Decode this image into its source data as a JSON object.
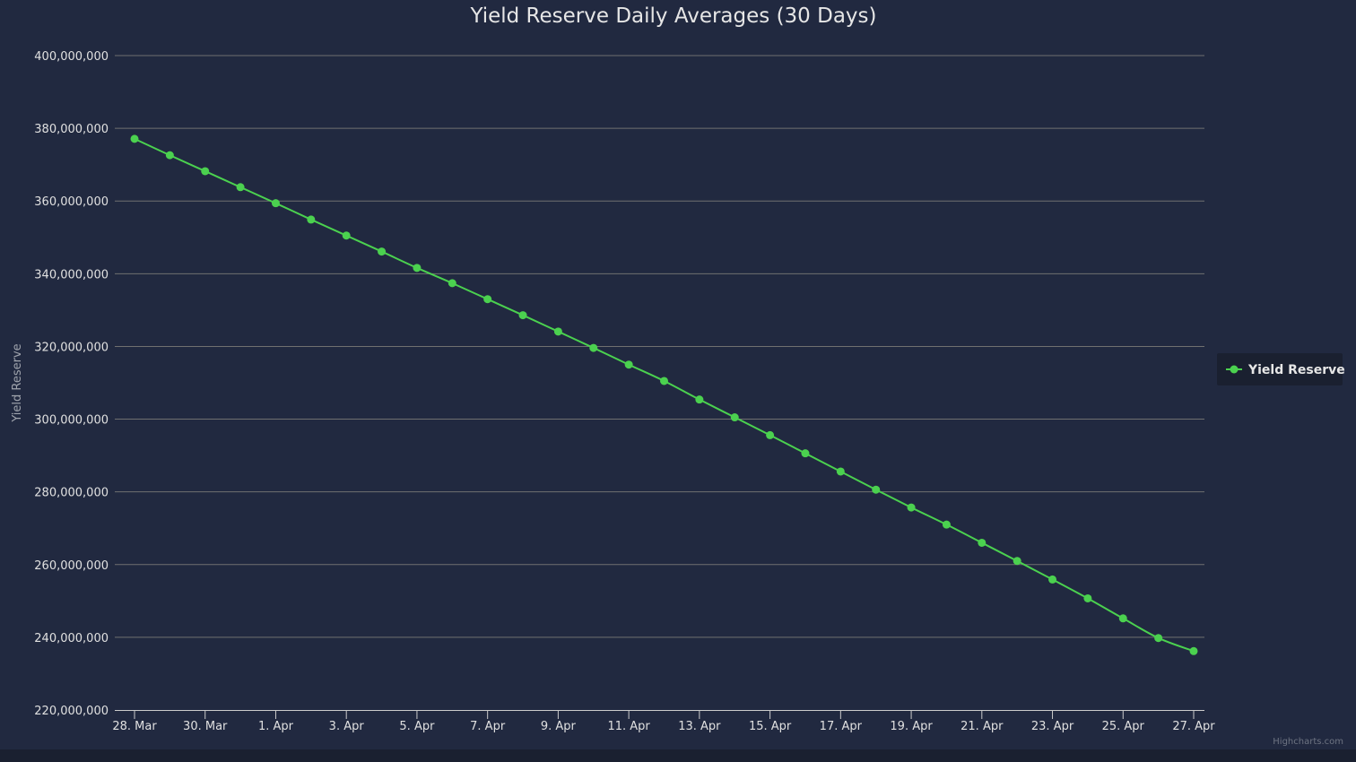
{
  "chart_data": {
    "type": "line",
    "title": "Yield Reserve Daily Averages (30 Days)",
    "xlabel": "",
    "ylabel": "Yield Reserve",
    "ylim": [
      220000000,
      400000000
    ],
    "y_ticks": [
      220000000,
      240000000,
      260000000,
      280000000,
      300000000,
      320000000,
      340000000,
      360000000,
      380000000,
      400000000
    ],
    "y_tick_labels": [
      "220,000,000",
      "240,000,000",
      "260,000,000",
      "280,000,000",
      "300,000,000",
      "320,000,000",
      "340,000,000",
      "360,000,000",
      "380,000,000",
      "400,000,000"
    ],
    "x": [
      "28. Mar",
      "29. Mar",
      "30. Mar",
      "31. Mar",
      "1. Apr",
      "2. Apr",
      "3. Apr",
      "4. Apr",
      "5. Apr",
      "6. Apr",
      "7. Apr",
      "8. Apr",
      "9. Apr",
      "10. Apr",
      "11. Apr",
      "12. Apr",
      "13. Apr",
      "14. Apr",
      "15. Apr",
      "16. Apr",
      "17. Apr",
      "18. Apr",
      "19. Apr",
      "20. Apr",
      "21. Apr",
      "22. Apr",
      "23. Apr",
      "24. Apr",
      "25. Apr",
      "26. Apr",
      "27. Apr"
    ],
    "x_tick_labels": [
      "28. Mar",
      "30. Mar",
      "1. Apr",
      "3. Apr",
      "5. Apr",
      "7. Apr",
      "9. Apr",
      "11. Apr",
      "13. Apr",
      "15. Apr",
      "17. Apr",
      "19. Apr",
      "21. Apr",
      "23. Apr",
      "25. Apr",
      "27. Apr"
    ],
    "grid": true,
    "legend_position": "right",
    "series": [
      {
        "name": "Yield Reserve",
        "color": "#4bd14f",
        "values": [
          377100000,
          372600000,
          368200000,
          363800000,
          359400000,
          354900000,
          350500000,
          346100000,
          341600000,
          337400000,
          333000000,
          328600000,
          324100000,
          319600000,
          315000000,
          310500000,
          305400000,
          300500000,
          295600000,
          290600000,
          285600000,
          280600000,
          275700000,
          271000000,
          266000000,
          261000000,
          255900000,
          250700000,
          245200000,
          239800000,
          236200000
        ]
      }
    ]
  },
  "credits": "Highcharts.com",
  "colors": {
    "background": "#212940",
    "grid": "#707070",
    "series": "#4bd14f",
    "legend_bg": "#1a2030"
  }
}
